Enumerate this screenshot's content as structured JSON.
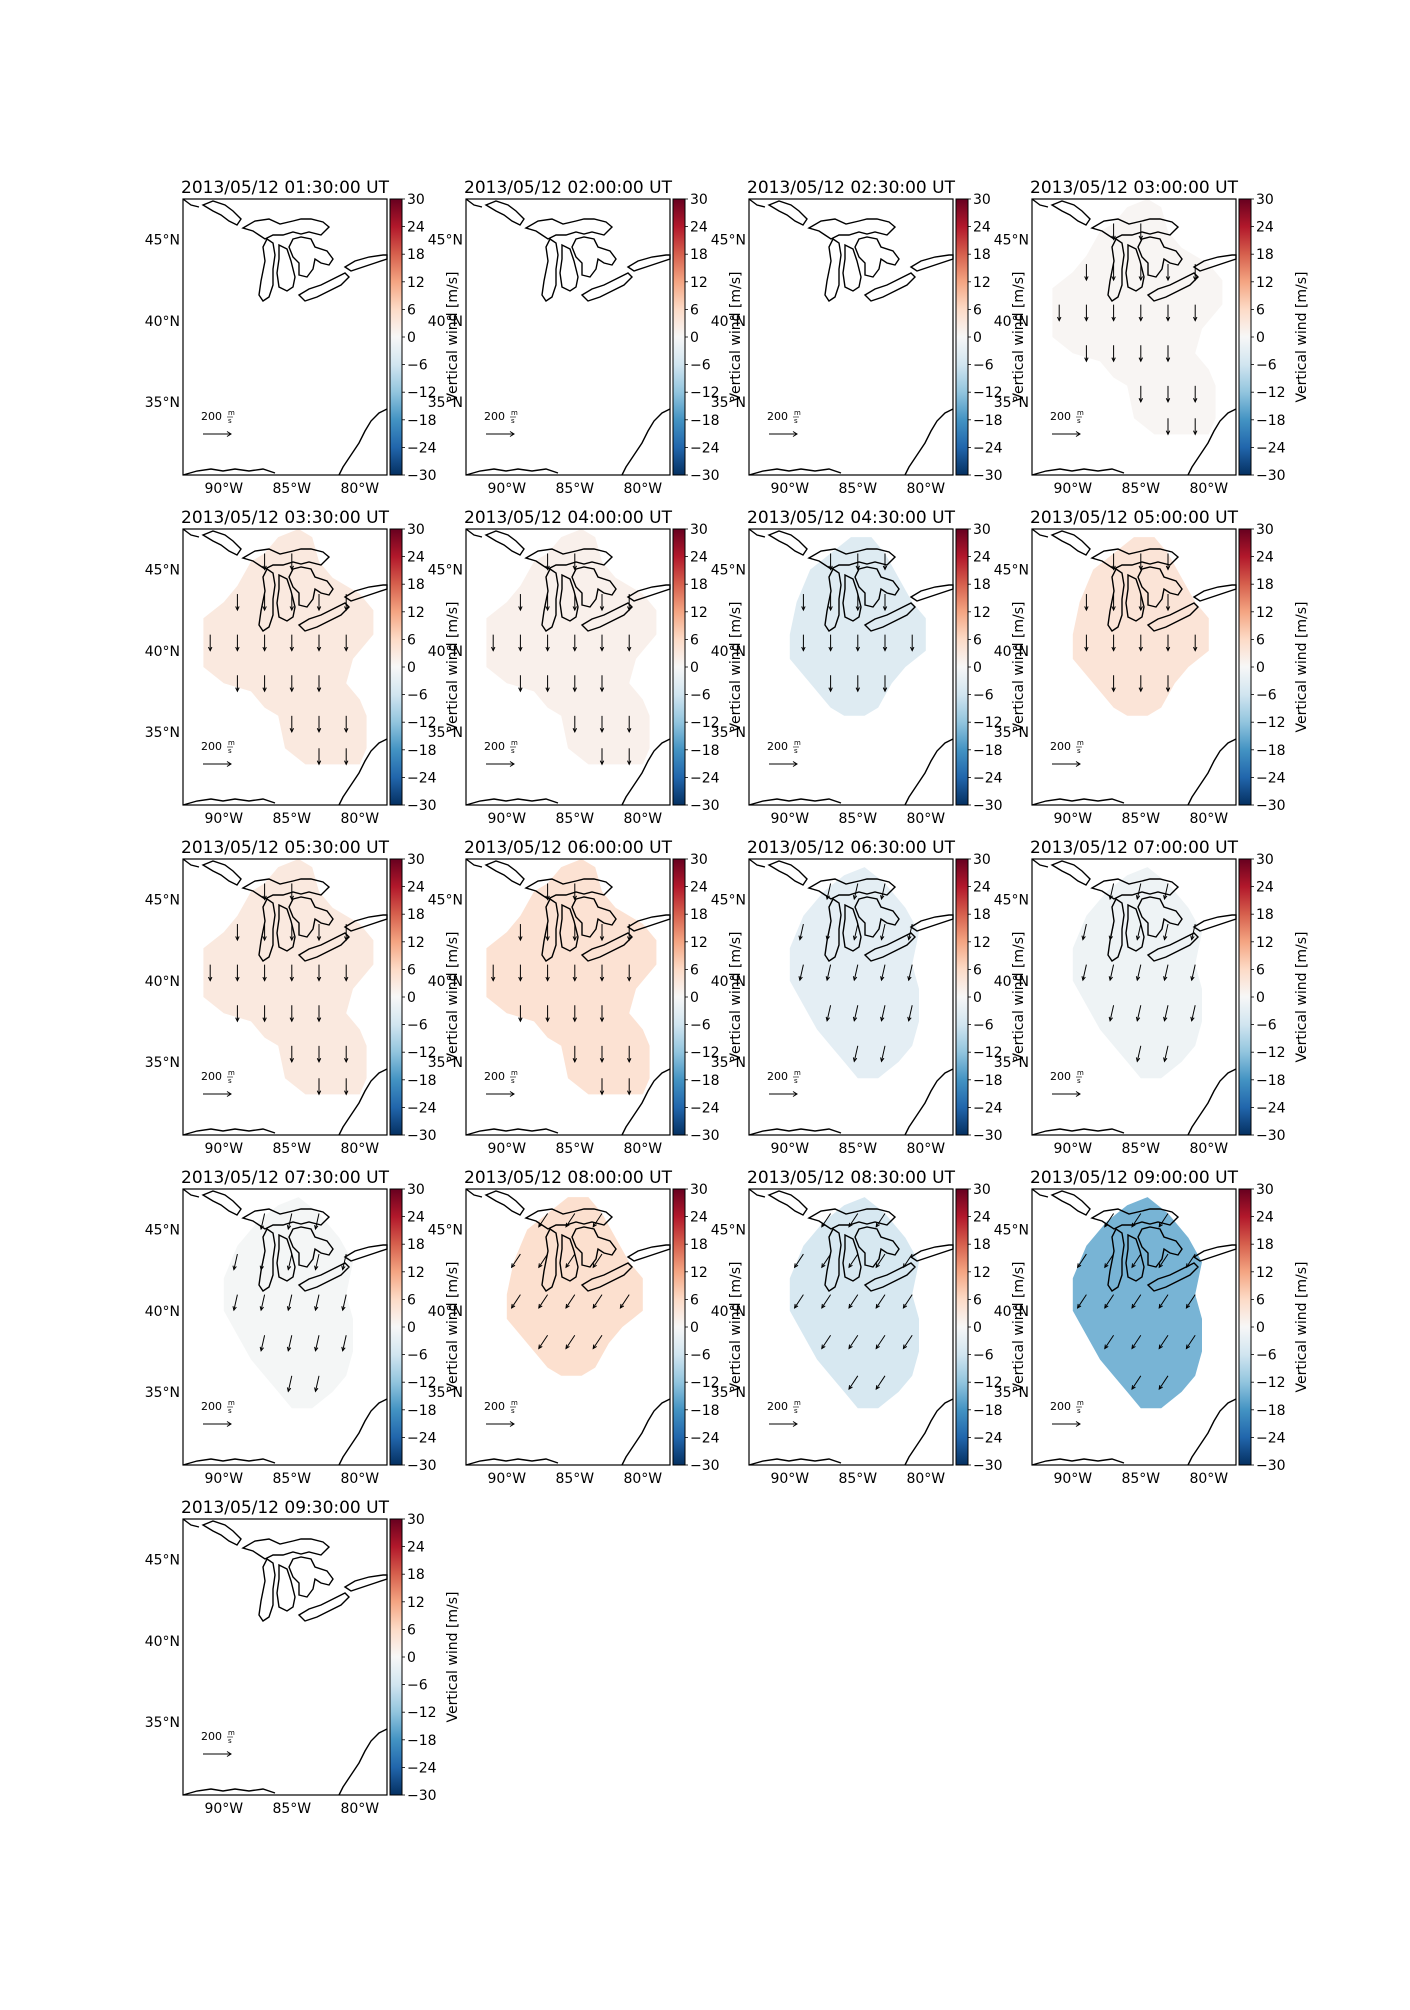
{
  "figure": {
    "colorbar": {
      "label": "Vertical wind [m/s]",
      "ticks": [
        30,
        24,
        18,
        12,
        6,
        0,
        -6,
        -12,
        -18,
        -24,
        -30
      ],
      "tick_labels": [
        "30",
        "24",
        "18",
        "12",
        "6",
        "0",
        "−6",
        "−12",
        "−18",
        "−24",
        "−30"
      ],
      "range": [
        -30,
        30
      ],
      "colormap": "RdBu_r",
      "colors": {
        "neg30": "#053061",
        "neg24": "#2166ac",
        "neg18": "#4393c3",
        "neg12": "#92c5de",
        "neg6": "#d1e5f0",
        "zero": "#f7f7f7",
        "pos6": "#fddbc7",
        "pos12": "#f4a582",
        "pos18": "#d6604d",
        "pos24": "#b2182b",
        "pos30": "#67001f"
      }
    },
    "lat_labels": [
      "45°N",
      "40°N",
      "35°N"
    ],
    "lon_labels": [
      "90°W",
      "85°W",
      "80°W"
    ],
    "reference_vector": {
      "value": "200",
      "units_top": "m",
      "units_bottom": "s"
    }
  },
  "chart_data": [
    {
      "type": "heatmap",
      "title": "2013/05/12 01:30:00 UT",
      "vertical_wind": null,
      "has_data": false,
      "arrow_direction": "none"
    },
    {
      "type": "heatmap",
      "title": "2013/05/12 02:00:00 UT",
      "vertical_wind": null,
      "has_data": false,
      "arrow_direction": "none"
    },
    {
      "type": "heatmap",
      "title": "2013/05/12 02:30:00 UT",
      "vertical_wind": null,
      "has_data": false,
      "arrow_direction": "none"
    },
    {
      "type": "heatmap",
      "title": "2013/05/12 03:00:00 UT",
      "vertical_wind": 0.5,
      "has_data": true,
      "arrow_direction": "south"
    },
    {
      "type": "heatmap",
      "title": "2013/05/12 03:30:00 UT",
      "vertical_wind": 3,
      "has_data": true,
      "arrow_direction": "south"
    },
    {
      "type": "heatmap",
      "title": "2013/05/12 04:00:00 UT",
      "vertical_wind": 1.5,
      "has_data": true,
      "arrow_direction": "south"
    },
    {
      "type": "heatmap",
      "title": "2013/05/12 04:30:00 UT",
      "vertical_wind": -4,
      "has_data": true,
      "arrow_direction": "south"
    },
    {
      "type": "heatmap",
      "title": "2013/05/12 05:00:00 UT",
      "vertical_wind": 4,
      "has_data": true,
      "arrow_direction": "south"
    },
    {
      "type": "heatmap",
      "title": "2013/05/12 05:30:00 UT",
      "vertical_wind": 3,
      "has_data": true,
      "arrow_direction": "south"
    },
    {
      "type": "heatmap",
      "title": "2013/05/12 06:00:00 UT",
      "vertical_wind": 4.5,
      "has_data": true,
      "arrow_direction": "south"
    },
    {
      "type": "heatmap",
      "title": "2013/05/12 06:30:00 UT",
      "vertical_wind": -3,
      "has_data": true,
      "arrow_direction": "south-southwest"
    },
    {
      "type": "heatmap",
      "title": "2013/05/12 07:00:00 UT",
      "vertical_wind": -1.5,
      "has_data": true,
      "arrow_direction": "south-southwest"
    },
    {
      "type": "heatmap",
      "title": "2013/05/12 07:30:00 UT",
      "vertical_wind": -0.5,
      "has_data": true,
      "arrow_direction": "south-southwest"
    },
    {
      "type": "heatmap",
      "title": "2013/05/12 08:00:00 UT",
      "vertical_wind": 5,
      "has_data": true,
      "arrow_direction": "southwest"
    },
    {
      "type": "heatmap",
      "title": "2013/05/12 08:30:00 UT",
      "vertical_wind": -5,
      "has_data": true,
      "arrow_direction": "southwest"
    },
    {
      "type": "heatmap",
      "title": "2013/05/12 09:00:00 UT",
      "vertical_wind": -14,
      "has_data": true,
      "arrow_direction": "southwest"
    },
    {
      "type": "heatmap",
      "title": "2013/05/12 09:30:00 UT",
      "vertical_wind": null,
      "has_data": false,
      "arrow_direction": "none"
    }
  ]
}
